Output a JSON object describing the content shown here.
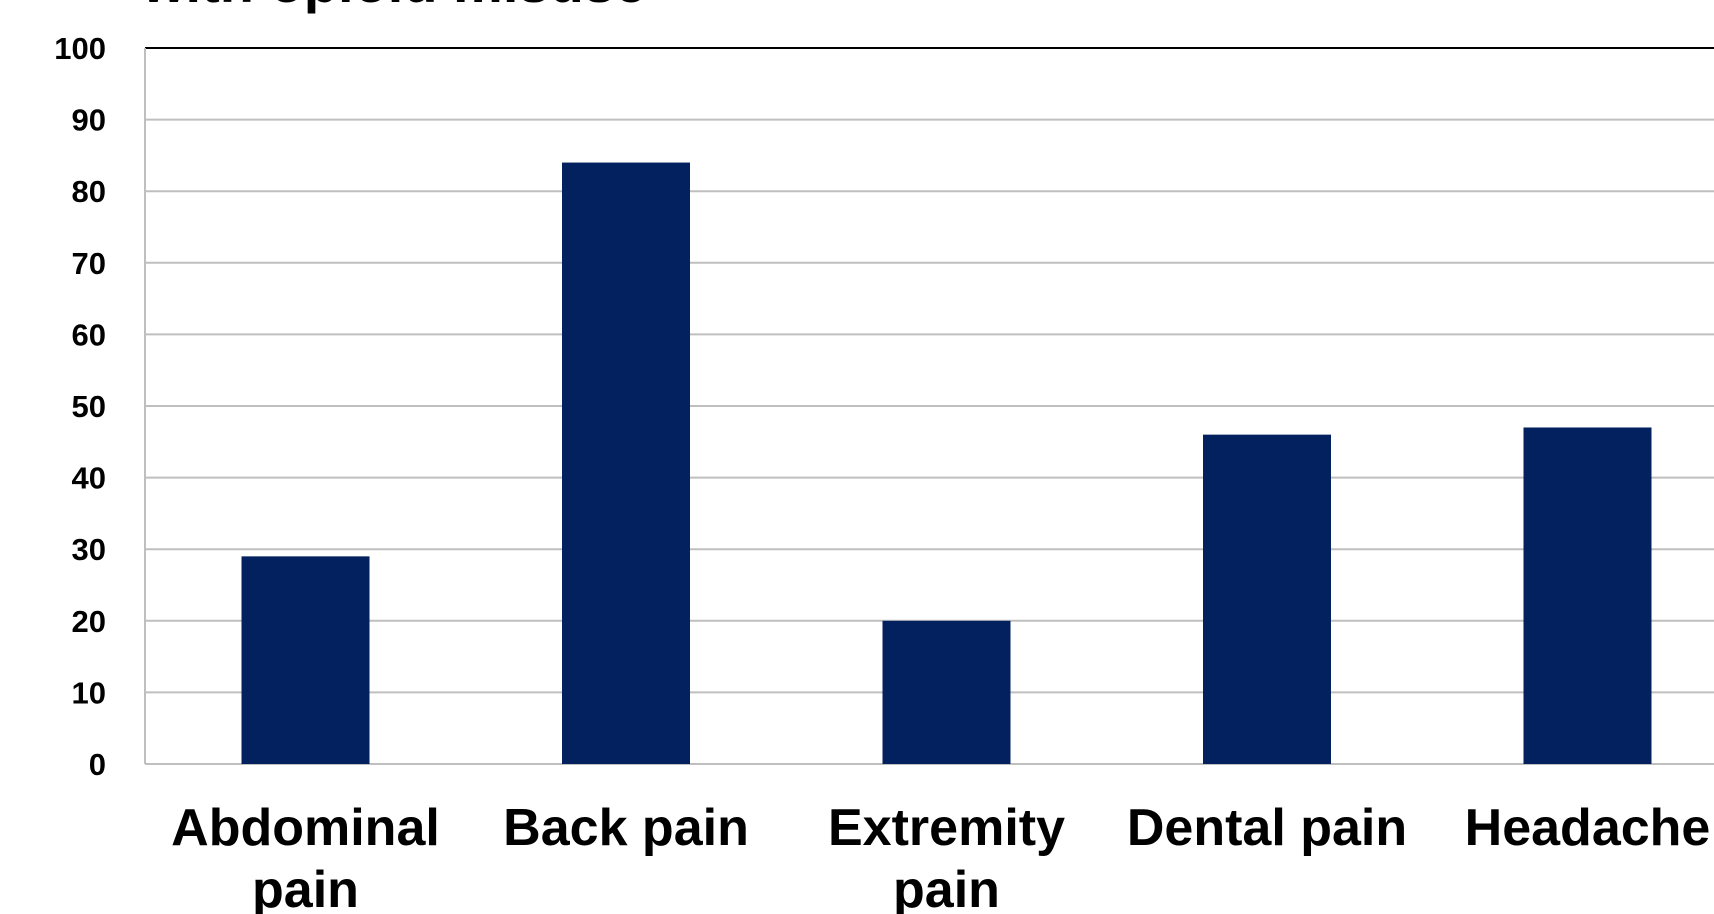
{
  "colors": {
    "bar": "#03215F",
    "grid": "#BFBFBF",
    "axis": "#000000"
  },
  "chart_data": {
    "type": "bar",
    "title": "with opioid misuse",
    "categories": [
      [
        "Abdominal",
        "pain"
      ],
      [
        "Back pain"
      ],
      [
        "Extremity",
        "pain"
      ],
      [
        "Dental pain"
      ],
      [
        "Headache"
      ]
    ],
    "values": [
      29,
      84,
      20,
      46,
      47
    ],
    "ylim": [
      0,
      100
    ],
    "yticks": [
      "0",
      "10",
      "20",
      "30",
      "40",
      "50",
      "60",
      "70",
      "80",
      "90",
      "100"
    ],
    "grid": true,
    "xlabel": "",
    "ylabel": ""
  }
}
